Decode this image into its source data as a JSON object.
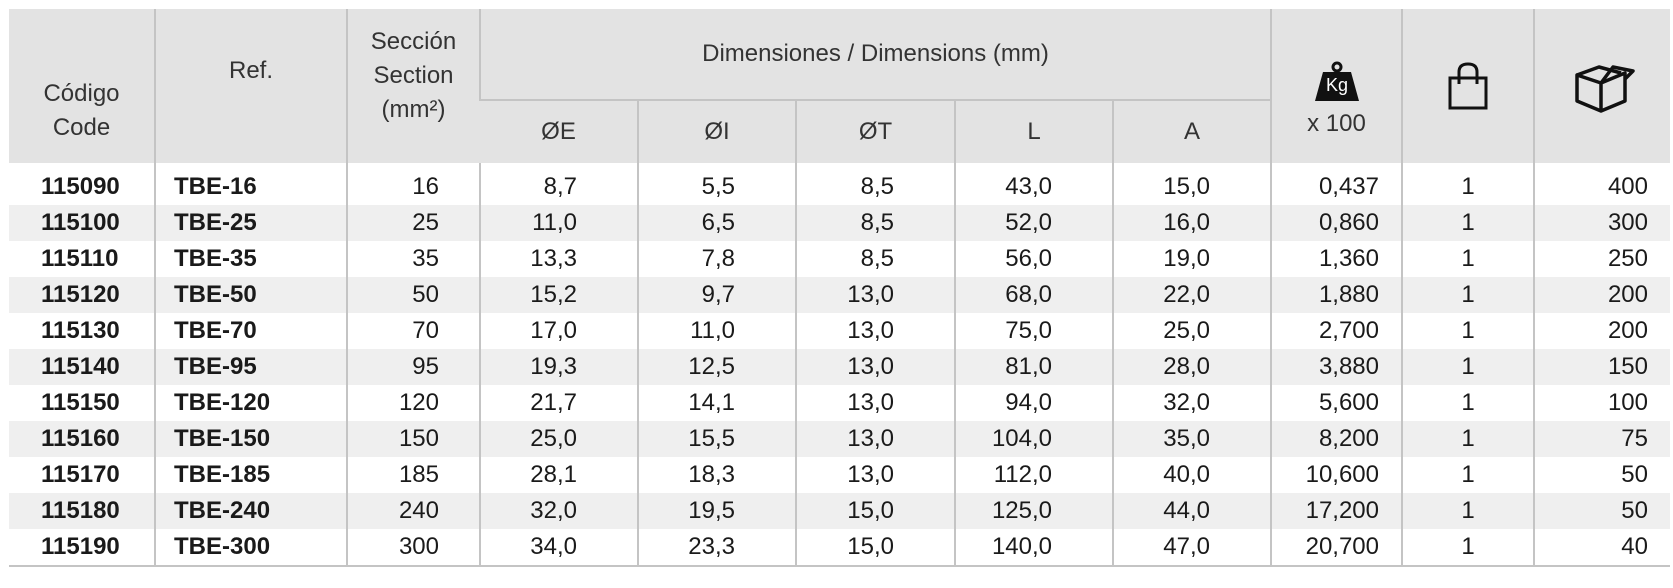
{
  "header": {
    "code": [
      "Código",
      "Code"
    ],
    "ref": "Ref.",
    "section": [
      "Sección",
      "Section",
      "(mm²)"
    ],
    "dimensions": "Dimensiones / Dimensions (mm)",
    "dims": [
      "ØE",
      "ØI",
      "ØT",
      "L",
      "A"
    ],
    "weight_icon": "Kg",
    "weight": "x 100"
  },
  "rows": [
    [
      "115090",
      "TBE-16",
      "16",
      "8,7",
      "5,5",
      "8,5",
      "43,0",
      "15,0",
      "0,437",
      "1",
      "400"
    ],
    [
      "115100",
      "TBE-25",
      "25",
      "11,0",
      "6,5",
      "8,5",
      "52,0",
      "16,0",
      "0,860",
      "1",
      "300"
    ],
    [
      "115110",
      "TBE-35",
      "35",
      "13,3",
      "7,8",
      "8,5",
      "56,0",
      "19,0",
      "1,360",
      "1",
      "250"
    ],
    [
      "115120",
      "TBE-50",
      "50",
      "15,2",
      "9,7",
      "13,0",
      "68,0",
      "22,0",
      "1,880",
      "1",
      "200"
    ],
    [
      "115130",
      "TBE-70",
      "70",
      "17,0",
      "11,0",
      "13,0",
      "75,0",
      "25,0",
      "2,700",
      "1",
      "200"
    ],
    [
      "115140",
      "TBE-95",
      "95",
      "19,3",
      "12,5",
      "13,0",
      "81,0",
      "28,0",
      "3,880",
      "1",
      "150"
    ],
    [
      "115150",
      "TBE-120",
      "120",
      "21,7",
      "14,1",
      "13,0",
      "94,0",
      "32,0",
      "5,600",
      "1",
      "100"
    ],
    [
      "115160",
      "TBE-150",
      "150",
      "25,0",
      "15,5",
      "13,0",
      "104,0",
      "35,0",
      "8,200",
      "1",
      "75"
    ],
    [
      "115170",
      "TBE-185",
      "185",
      "28,1",
      "18,3",
      "13,0",
      "112,0",
      "40,0",
      "10,600",
      "1",
      "50"
    ],
    [
      "115180",
      "TBE-240",
      "240",
      "32,0",
      "19,5",
      "15,0",
      "125,0",
      "44,0",
      "17,200",
      "1",
      "50"
    ],
    [
      "115190",
      "TBE-300",
      "300",
      "34,0",
      "23,3",
      "15,0",
      "140,0",
      "47,0",
      "20,700",
      "1",
      "40"
    ]
  ]
}
